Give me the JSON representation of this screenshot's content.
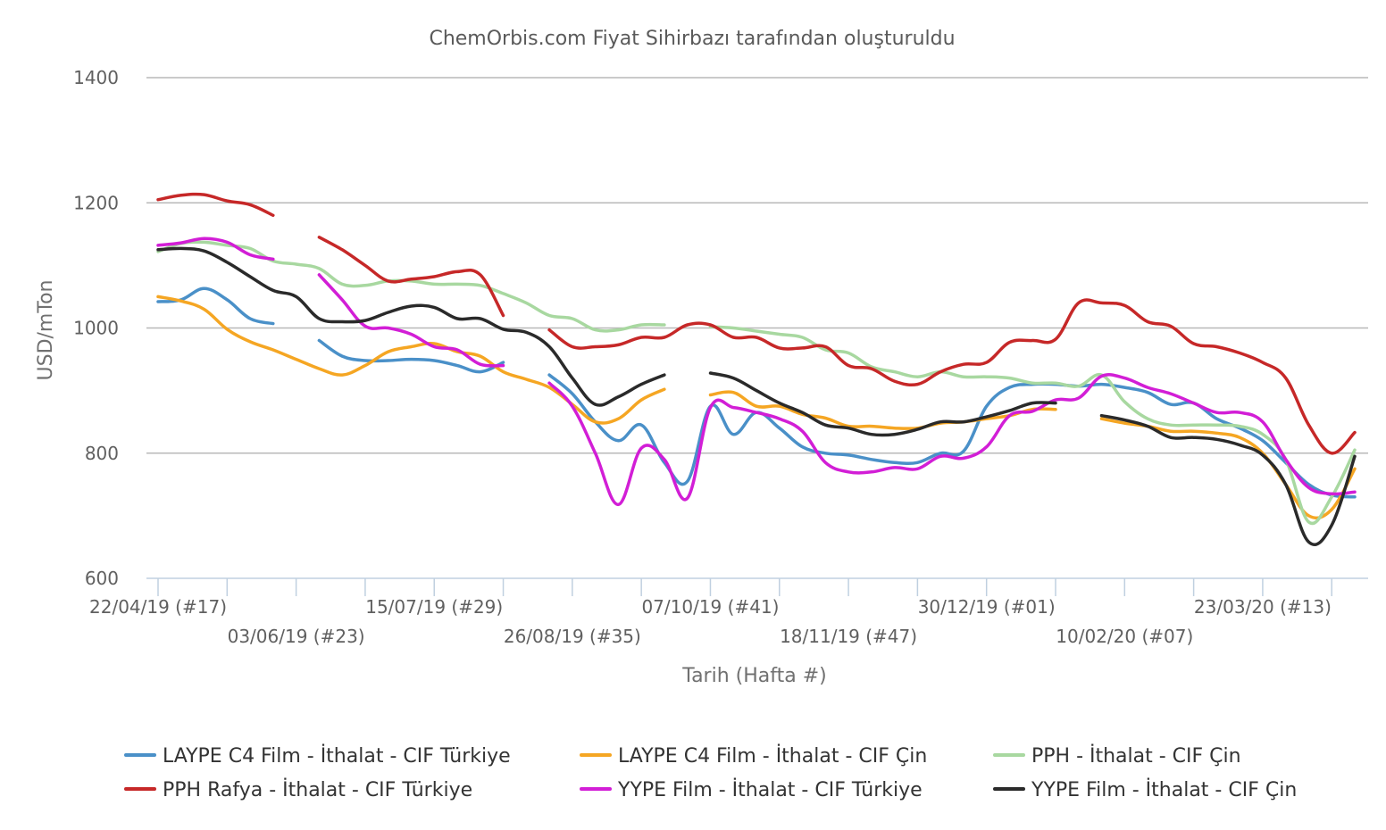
{
  "chart_data": {
    "type": "line",
    "subtitle": "ChemOrbis.com Fiyat Sihirbazı tarafından oluşturuldu",
    "xlabel": "Tarih (Hafta #)",
    "ylabel": "USD/mTon",
    "ylim": [
      600,
      1400
    ],
    "yticks": [
      "600",
      "800",
      "1000",
      "1200",
      "1400"
    ],
    "x_start_week": "22/04/19 (#17)",
    "x_week_count": 53,
    "x_tick_labels": [
      {
        "week": 0,
        "label": "22/04/19 (#17)"
      },
      {
        "week": 6,
        "label": "03/06/19 (#23)"
      },
      {
        "week": 12,
        "label": "15/07/19 (#29)"
      },
      {
        "week": 18,
        "label": "26/08/19 (#35)"
      },
      {
        "week": 24,
        "label": "07/10/19 (#41)"
      },
      {
        "week": 30,
        "label": "18/11/19 (#47)"
      },
      {
        "week": 36,
        "label": "30/12/19 (#01)"
      },
      {
        "week": 42,
        "label": "10/02/20 (#07)"
      },
      {
        "week": 48,
        "label": "23/03/20 (#13)"
      }
    ],
    "grid": true,
    "legend_position": "bottom",
    "series": [
      {
        "name": "LAYPE C4 Film - İthalat - CIF Türkiye",
        "color": "#4a90c8",
        "points": [
          [
            0,
            1042
          ],
          [
            1,
            1045
          ],
          [
            2,
            1063
          ],
          [
            3,
            1045
          ],
          [
            4,
            1015
          ],
          [
            5,
            1007
          ],
          null,
          [
            7,
            980
          ],
          [
            8,
            955
          ],
          [
            9,
            948
          ],
          [
            10,
            948
          ],
          [
            11,
            950
          ],
          [
            12,
            948
          ],
          [
            13,
            940
          ],
          [
            14,
            930
          ],
          [
            15,
            945
          ],
          null,
          [
            17,
            925
          ],
          [
            18,
            895
          ],
          [
            19,
            850
          ],
          [
            20,
            820
          ],
          [
            21,
            845
          ],
          [
            22,
            785
          ],
          [
            23,
            755
          ],
          [
            24,
            875
          ],
          [
            25,
            830
          ],
          [
            26,
            865
          ],
          [
            27,
            840
          ],
          [
            28,
            810
          ],
          [
            29,
            800
          ],
          [
            30,
            797
          ],
          [
            31,
            790
          ],
          [
            32,
            785
          ],
          [
            33,
            785
          ],
          [
            34,
            800
          ],
          [
            35,
            803
          ],
          [
            36,
            875
          ],
          [
            37,
            905
          ],
          [
            38,
            910
          ],
          [
            39,
            910
          ],
          [
            40,
            907
          ],
          [
            41,
            910
          ],
          [
            42,
            905
          ],
          [
            43,
            897
          ],
          [
            44,
            878
          ],
          [
            45,
            880
          ],
          [
            46,
            855
          ],
          [
            47,
            840
          ],
          [
            48,
            820
          ],
          [
            49,
            785
          ],
          [
            50,
            750
          ],
          [
            51,
            733
          ],
          [
            52,
            730
          ]
        ]
      },
      {
        "name": "LAYPE C4 Film - İthalat - CIF Çin",
        "color": "#f5a623",
        "points": [
          [
            0,
            1050
          ],
          [
            1,
            1043
          ],
          [
            2,
            1030
          ],
          [
            3,
            998
          ],
          [
            4,
            978
          ],
          [
            5,
            965
          ],
          [
            6,
            950
          ],
          [
            7,
            935
          ],
          [
            8,
            925
          ],
          [
            9,
            940
          ],
          [
            10,
            962
          ],
          [
            11,
            970
          ],
          [
            12,
            975
          ],
          [
            13,
            962
          ],
          [
            14,
            955
          ],
          [
            15,
            930
          ],
          [
            16,
            918
          ],
          [
            17,
            905
          ],
          [
            18,
            878
          ],
          [
            19,
            850
          ],
          [
            20,
            855
          ],
          [
            21,
            885
          ],
          [
            22,
            902
          ],
          null,
          [
            24,
            893
          ],
          [
            25,
            897
          ],
          [
            26,
            875
          ],
          [
            27,
            875
          ],
          [
            28,
            862
          ],
          [
            29,
            856
          ],
          [
            30,
            843
          ],
          [
            31,
            843
          ],
          [
            32,
            840
          ],
          [
            33,
            840
          ],
          [
            34,
            848
          ],
          [
            35,
            850
          ],
          [
            36,
            855
          ],
          [
            37,
            860
          ],
          [
            38,
            870
          ],
          [
            39,
            870
          ],
          null,
          [
            41,
            855
          ],
          [
            42,
            848
          ],
          [
            43,
            843
          ],
          [
            44,
            835
          ],
          [
            45,
            835
          ],
          [
            46,
            832
          ],
          [
            47,
            825
          ],
          [
            48,
            800
          ],
          [
            49,
            750
          ],
          [
            50,
            700
          ],
          [
            51,
            710
          ],
          [
            52,
            775
          ]
        ]
      },
      {
        "name": "PPH - İthalat - CIF Çin",
        "color": "#a8d8a0",
        "points": [
          [
            0,
            1122
          ],
          [
            1,
            1135
          ],
          [
            2,
            1137
          ],
          [
            3,
            1132
          ],
          [
            4,
            1127
          ],
          [
            5,
            1107
          ],
          [
            6,
            1102
          ],
          [
            7,
            1095
          ],
          [
            8,
            1070
          ],
          [
            9,
            1068
          ],
          [
            10,
            1075
          ],
          [
            11,
            1075
          ],
          [
            12,
            1070
          ],
          [
            13,
            1070
          ],
          [
            14,
            1068
          ],
          [
            15,
            1055
          ],
          [
            16,
            1040
          ],
          [
            17,
            1020
          ],
          [
            18,
            1015
          ],
          [
            19,
            997
          ],
          [
            20,
            997
          ],
          [
            21,
            1005
          ],
          [
            22,
            1005
          ],
          null,
          [
            24,
            1002
          ],
          [
            25,
            1000
          ],
          [
            26,
            995
          ],
          [
            27,
            990
          ],
          [
            28,
            985
          ],
          [
            29,
            965
          ],
          [
            30,
            960
          ],
          [
            31,
            938
          ],
          [
            32,
            930
          ],
          [
            33,
            922
          ],
          [
            34,
            930
          ],
          [
            35,
            922
          ],
          [
            36,
            922
          ],
          [
            37,
            920
          ],
          [
            38,
            912
          ],
          [
            39,
            912
          ],
          [
            40,
            907
          ],
          [
            41,
            925
          ],
          [
            42,
            882
          ],
          [
            43,
            855
          ],
          [
            44,
            845
          ],
          [
            45,
            845
          ],
          [
            46,
            845
          ],
          [
            47,
            843
          ],
          [
            48,
            830
          ],
          [
            49,
            790
          ],
          [
            50,
            690
          ],
          [
            51,
            730
          ],
          [
            52,
            805
          ]
        ]
      },
      {
        "name": "PPH Rafya - İthalat - CIF Türkiye",
        "color": "#c62828",
        "points": [
          [
            0,
            1205
          ],
          [
            1,
            1212
          ],
          [
            2,
            1213
          ],
          [
            3,
            1203
          ],
          [
            4,
            1197
          ],
          [
            5,
            1180
          ],
          null,
          [
            7,
            1145
          ],
          [
            8,
            1125
          ],
          [
            9,
            1100
          ],
          [
            10,
            1075
          ],
          [
            11,
            1078
          ],
          [
            12,
            1082
          ],
          [
            13,
            1090
          ],
          [
            14,
            1085
          ],
          [
            15,
            1020
          ],
          null,
          [
            17,
            997
          ],
          [
            18,
            970
          ],
          [
            19,
            970
          ],
          [
            20,
            973
          ],
          [
            21,
            985
          ],
          [
            22,
            985
          ],
          [
            23,
            1005
          ],
          [
            24,
            1005
          ],
          [
            25,
            985
          ],
          [
            26,
            985
          ],
          [
            27,
            968
          ],
          [
            28,
            968
          ],
          [
            29,
            970
          ],
          [
            30,
            940
          ],
          [
            31,
            935
          ],
          [
            32,
            915
          ],
          [
            33,
            910
          ],
          [
            34,
            930
          ],
          [
            35,
            942
          ],
          [
            36,
            945
          ],
          [
            37,
            977
          ],
          [
            38,
            980
          ],
          [
            39,
            982
          ],
          [
            40,
            1040
          ],
          [
            41,
            1040
          ],
          [
            42,
            1036
          ],
          [
            43,
            1010
          ],
          [
            44,
            1003
          ],
          [
            45,
            975
          ],
          [
            46,
            970
          ],
          [
            47,
            960
          ],
          [
            48,
            945
          ],
          [
            49,
            920
          ],
          [
            50,
            845
          ],
          [
            51,
            800
          ],
          [
            52,
            833
          ]
        ]
      },
      {
        "name": "YYPE Film - İthalat - CIF Türkiye",
        "color": "#d21ed6",
        "points": [
          [
            0,
            1132
          ],
          [
            1,
            1136
          ],
          [
            2,
            1143
          ],
          [
            3,
            1137
          ],
          [
            4,
            1117
          ],
          [
            5,
            1110
          ],
          null,
          [
            7,
            1085
          ],
          [
            8,
            1045
          ],
          [
            9,
            1003
          ],
          [
            10,
            1000
          ],
          [
            11,
            990
          ],
          [
            12,
            970
          ],
          [
            13,
            965
          ],
          [
            14,
            942
          ],
          [
            15,
            940
          ],
          null,
          [
            17,
            912
          ],
          [
            18,
            875
          ],
          [
            19,
            800
          ],
          [
            20,
            718
          ],
          [
            21,
            808
          ],
          [
            22,
            790
          ],
          [
            23,
            728
          ],
          [
            24,
            873
          ],
          [
            25,
            873
          ],
          [
            26,
            865
          ],
          [
            27,
            855
          ],
          [
            28,
            835
          ],
          [
            29,
            785
          ],
          [
            30,
            770
          ],
          [
            31,
            770
          ],
          [
            32,
            777
          ],
          [
            33,
            775
          ],
          [
            34,
            795
          ],
          [
            35,
            792
          ],
          [
            36,
            810
          ],
          [
            37,
            860
          ],
          [
            38,
            867
          ],
          [
            39,
            885
          ],
          [
            40,
            888
          ],
          [
            41,
            923
          ],
          [
            42,
            920
          ],
          [
            43,
            905
          ],
          [
            44,
            895
          ],
          [
            45,
            880
          ],
          [
            46,
            865
          ],
          [
            47,
            865
          ],
          [
            48,
            850
          ],
          [
            49,
            790
          ],
          [
            50,
            745
          ],
          [
            51,
            735
          ],
          [
            52,
            738
          ]
        ]
      },
      {
        "name": "YYPE Film - İthalat - CIF Çin",
        "color": "#2a2a2a",
        "points": [
          [
            0,
            1125
          ],
          [
            1,
            1127
          ],
          [
            2,
            1123
          ],
          [
            3,
            1105
          ],
          [
            4,
            1082
          ],
          [
            5,
            1060
          ],
          [
            6,
            1050
          ],
          [
            7,
            1015
          ],
          [
            8,
            1010
          ],
          [
            9,
            1012
          ],
          [
            10,
            1025
          ],
          [
            11,
            1035
          ],
          [
            12,
            1033
          ],
          [
            13,
            1015
          ],
          [
            14,
            1015
          ],
          [
            15,
            998
          ],
          [
            16,
            993
          ],
          [
            17,
            970
          ],
          [
            18,
            920
          ],
          [
            19,
            878
          ],
          [
            20,
            890
          ],
          [
            21,
            910
          ],
          [
            22,
            925
          ],
          null,
          [
            24,
            928
          ],
          [
            25,
            920
          ],
          [
            26,
            900
          ],
          [
            27,
            880
          ],
          [
            28,
            865
          ],
          [
            29,
            845
          ],
          [
            30,
            840
          ],
          [
            31,
            830
          ],
          [
            32,
            830
          ],
          [
            33,
            838
          ],
          [
            34,
            850
          ],
          [
            35,
            850
          ],
          [
            36,
            858
          ],
          [
            37,
            868
          ],
          [
            38,
            880
          ],
          [
            39,
            880
          ],
          null,
          [
            41,
            860
          ],
          [
            42,
            853
          ],
          [
            43,
            843
          ],
          [
            44,
            825
          ],
          [
            45,
            825
          ],
          [
            46,
            822
          ],
          [
            47,
            813
          ],
          [
            48,
            797
          ],
          [
            49,
            750
          ],
          [
            50,
            658
          ],
          [
            51,
            685
          ],
          [
            52,
            795
          ]
        ]
      }
    ]
  }
}
